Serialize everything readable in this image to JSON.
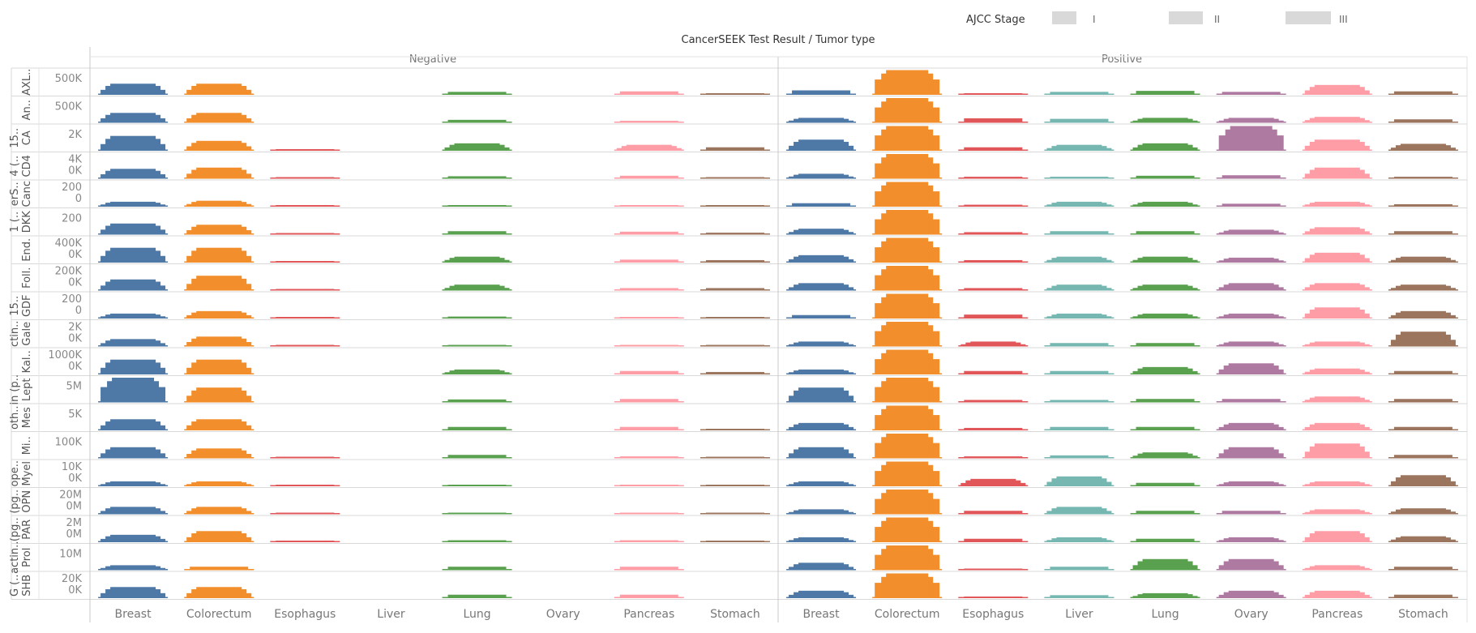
{
  "chart_data": {
    "type": "bar",
    "title": "CancerSEEK Test Result  /  Tumor type",
    "legend": {
      "title": "AJCC Stage",
      "placement": "top-right",
      "entries": [
        "I",
        "II",
        "III"
      ]
    },
    "column_groups": [
      "Negative",
      "Positive"
    ],
    "categories": [
      "Breast",
      "Colorectum",
      "Esophagus",
      "Liver",
      "Lung",
      "Ovary",
      "Pancreas",
      "Stomach"
    ],
    "category_colors": [
      "#4e79a7",
      "#f28e2b",
      "#e15759",
      "#76b7b2",
      "#59a14f",
      "#af7aa1",
      "#ff9da7",
      "#9c755f"
    ],
    "rows": [
      {
        "label": "AXL..",
        "label2": "",
        "ticks": [
          "500K"
        ],
        "values": [
          [
            0.45,
            0.45,
            0,
            0,
            0.12,
            0,
            0.14,
            0.06
          ],
          [
            0.18,
            1.0,
            0.06,
            0.12,
            0.16,
            0.12,
            0.4,
            0.14
          ]
        ]
      },
      {
        "label": "An..",
        "label2": "",
        "ticks": [
          "500K"
        ],
        "values": [
          [
            0.4,
            0.4,
            0,
            0,
            0.12,
            0,
            0.08,
            0
          ],
          [
            0.2,
            1.0,
            0.18,
            0.16,
            0.2,
            0.2,
            0.24,
            0.14
          ]
        ]
      },
      {
        "label": "CA",
        "label2": "15..",
        "ticks": [
          "2K"
        ],
        "values": [
          [
            0.6,
            0.4,
            0.06,
            0,
            0.3,
            0,
            0.24,
            0.14
          ],
          [
            0.45,
            1.0,
            0.14,
            0.24,
            0.3,
            1.0,
            0.45,
            0.28
          ]
        ]
      },
      {
        "label": "CD4",
        "label2": "4 (..",
        "ticks": [
          "4K",
          "0K"
        ],
        "values": [
          [
            0.4,
            0.45,
            0.06,
            0,
            0.1,
            0,
            0.12,
            0.06
          ],
          [
            0.2,
            1.0,
            0.08,
            0.08,
            0.12,
            0.14,
            0.45,
            0.08
          ]
        ]
      },
      {
        "label": "Canc",
        "label2": "erS..",
        "ticks": [
          "200",
          "0"
        ],
        "values": [
          [
            0.2,
            0.24,
            0.04,
            0,
            0.06,
            0,
            0.06,
            0.04
          ],
          [
            0.14,
            1.0,
            0.08,
            0.2,
            0.2,
            0.12,
            0.2,
            0.1
          ]
        ]
      },
      {
        "label": "DKK",
        "label2": "1 (..",
        "ticks": [
          "200"
        ],
        "values": [
          [
            0.45,
            0.4,
            0.06,
            0,
            0.14,
            0,
            0.12,
            0.08
          ],
          [
            0.24,
            1.0,
            0.1,
            0.14,
            0.14,
            0.2,
            0.3,
            0.14
          ]
        ]
      },
      {
        "label": "End.",
        "label2": "",
        "ticks": [
          "400K",
          "0K"
        ],
        "values": [
          [
            0.6,
            0.6,
            0.06,
            0,
            0.24,
            0,
            0.12,
            0.1
          ],
          [
            0.3,
            1.0,
            0.1,
            0.24,
            0.24,
            0.2,
            0.4,
            0.24
          ]
        ]
      },
      {
        "label": "Foll.",
        "label2": "",
        "ticks": [
          "200K",
          "0K"
        ],
        "values": [
          [
            0.45,
            0.6,
            0.06,
            0,
            0.24,
            0,
            0.1,
            0.1
          ],
          [
            0.3,
            1.0,
            0.1,
            0.24,
            0.24,
            0.3,
            0.3,
            0.24
          ]
        ]
      },
      {
        "label": "GDF",
        "label2": "15..",
        "ticks": [
          "200",
          "0"
        ],
        "values": [
          [
            0.2,
            0.3,
            0.04,
            0,
            0.08,
            0,
            0.04,
            0.04
          ],
          [
            0.14,
            1.0,
            0.16,
            0.2,
            0.2,
            0.2,
            0.45,
            0.3
          ]
        ]
      },
      {
        "label": "Gale",
        "label2": "ctin..",
        "ticks": [
          "2K",
          "0K"
        ],
        "values": [
          [
            0.3,
            0.4,
            0.04,
            0,
            0.06,
            0,
            0.06,
            0.06
          ],
          [
            0.2,
            1.0,
            0.2,
            0.14,
            0.14,
            0.2,
            0.2,
            0.6
          ]
        ]
      },
      {
        "label": "Kal..",
        "label2": "",
        "ticks": [
          "1000K",
          "0K"
        ],
        "values": [
          [
            0.6,
            0.6,
            0,
            0,
            0.2,
            0,
            0.14,
            0.1
          ],
          [
            0.2,
            1.0,
            0.14,
            0.14,
            0.3,
            0.45,
            0.24,
            0.14
          ]
        ]
      },
      {
        "label": "Lept",
        "label2": "in (p..",
        "ticks": [
          "5M"
        ],
        "values": [
          [
            1.0,
            0.6,
            0,
            0,
            0.12,
            0,
            0.14,
            0
          ],
          [
            0.6,
            1.0,
            0.1,
            0.1,
            0.14,
            0.14,
            0.24,
            0.14
          ]
        ]
      },
      {
        "label": "Mes",
        "label2": "oth..",
        "ticks": [
          "5K"
        ],
        "values": [
          [
            0.45,
            0.45,
            0,
            0,
            0.14,
            0,
            0.14,
            0.06
          ],
          [
            0.3,
            1.0,
            0.1,
            0.14,
            0.14,
            0.3,
            0.3,
            0.14
          ]
        ]
      },
      {
        "label": "Mi..",
        "label2": "",
        "ticks": [
          "100K"
        ],
        "values": [
          [
            0.45,
            0.4,
            0.04,
            0,
            0.14,
            0,
            0.08,
            0.06
          ],
          [
            0.45,
            1.0,
            0.08,
            0.12,
            0.24,
            0.45,
            0.6,
            0.14
          ]
        ]
      },
      {
        "label": "Myel",
        "label2": "ope..",
        "ticks": [
          "10K",
          "0K"
        ],
        "values": [
          [
            0.2,
            0.2,
            0.04,
            0,
            0.04,
            0,
            0.06,
            0.04
          ],
          [
            0.2,
            1.0,
            0.3,
            0.4,
            0.14,
            0.2,
            0.2,
            0.45
          ]
        ]
      },
      {
        "label": "OPN",
        "label2": "(pg..",
        "ticks": [
          "20M",
          "0M"
        ],
        "values": [
          [
            0.3,
            0.3,
            0.04,
            0,
            0.06,
            0,
            0.06,
            0.04
          ],
          [
            0.2,
            1.0,
            0.14,
            0.3,
            0.14,
            0.14,
            0.2,
            0.24
          ]
        ]
      },
      {
        "label": "PAR",
        "label2": "(pg..",
        "ticks": [
          "2M",
          "0M"
        ],
        "values": [
          [
            0.3,
            0.45,
            0.04,
            0,
            0.08,
            0,
            0.08,
            0.04
          ],
          [
            0.2,
            1.0,
            0.14,
            0.2,
            0.14,
            0.2,
            0.45,
            0.24
          ]
        ]
      },
      {
        "label": "Prol",
        "label2": "actin..",
        "ticks": [
          "10M"
        ],
        "values": [
          [
            0.2,
            0.14,
            0,
            0,
            0.14,
            0,
            0.14,
            0
          ],
          [
            0.3,
            1.0,
            0.06,
            0.14,
            0.45,
            0.45,
            0.2,
            0.14
          ]
        ]
      },
      {
        "label": "SHB",
        "label2": "G (..",
        "ticks": [
          "20K",
          "0K"
        ],
        "values": [
          [
            0.45,
            0.45,
            0,
            0,
            0.14,
            0,
            0.14,
            0
          ],
          [
            0.3,
            1.0,
            0.04,
            0.12,
            0.2,
            0.3,
            0.3,
            0.14
          ]
        ]
      }
    ]
  }
}
